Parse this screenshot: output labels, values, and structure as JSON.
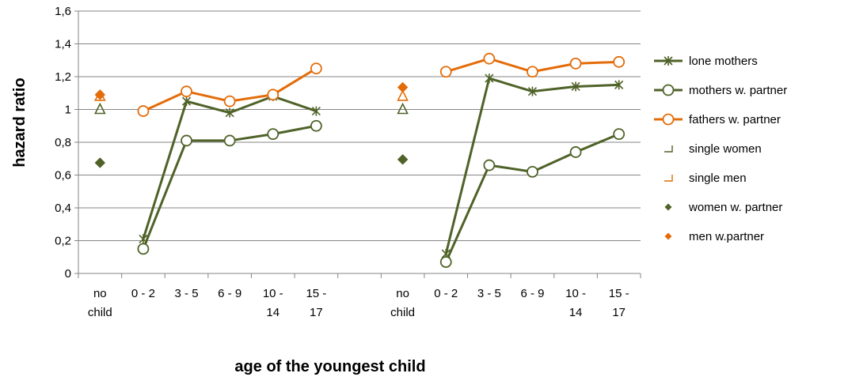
{
  "chart_data": {
    "type": "line",
    "xlabel": "age of the youngest child",
    "ylabel": "hazard ratio",
    "ylim": [
      0,
      1.6
    ],
    "yticks": [
      "0",
      "0,2",
      "0,4",
      "0,6",
      "0,8",
      "1",
      "1,2",
      "1,4",
      "1,6"
    ],
    "grid": "horizontal",
    "legend_position": "right",
    "categories": [
      [
        "no",
        "child"
      ],
      [
        "0 - 2"
      ],
      [
        "3 - 5"
      ],
      [
        "6 - 9"
      ],
      [
        "10 -",
        "14"
      ],
      [
        "15 -",
        "17"
      ],
      [
        ""
      ],
      [
        "no",
        "child"
      ],
      [
        "0 - 2"
      ],
      [
        "3 - 5"
      ],
      [
        "6 - 9"
      ],
      [
        "10 -",
        "14"
      ],
      [
        "15 -",
        "17"
      ]
    ],
    "series": [
      {
        "name": "lone mothers",
        "kind": "line",
        "marker": "star",
        "color": "#4f6228",
        "values": [
          null,
          0.21,
          1.05,
          0.98,
          1.08,
          0.99,
          null,
          null,
          0.12,
          1.19,
          1.11,
          1.14,
          1.15
        ]
      },
      {
        "name": "mothers w. partner",
        "kind": "line",
        "marker": "circle",
        "color": "#4f6228",
        "values": [
          null,
          0.15,
          0.81,
          0.81,
          0.85,
          0.9,
          null,
          null,
          0.07,
          0.66,
          0.62,
          0.74,
          0.85
        ]
      },
      {
        "name": "fathers w. partner",
        "kind": "line",
        "marker": "circle",
        "color": "#e36c09",
        "values": [
          null,
          0.99,
          1.11,
          1.05,
          1.09,
          1.25,
          null,
          null,
          1.23,
          1.31,
          1.23,
          1.28,
          1.29
        ]
      },
      {
        "name": "single women",
        "kind": "point",
        "marker": "triangle",
        "color": "#4f6228",
        "values": [
          1.0,
          null,
          null,
          null,
          null,
          null,
          null,
          1.0,
          null,
          null,
          null,
          null,
          null
        ]
      },
      {
        "name": "single men",
        "kind": "point",
        "marker": "triangle",
        "color": "#e36c09",
        "values": [
          1.08,
          null,
          null,
          null,
          null,
          null,
          null,
          1.08,
          null,
          null,
          null,
          null,
          null
        ]
      },
      {
        "name": "women w. partner",
        "kind": "point",
        "marker": "diamond",
        "color": "#4f6228",
        "values": [
          0.675,
          null,
          null,
          null,
          null,
          null,
          null,
          0.695,
          null,
          null,
          null,
          null,
          null
        ]
      },
      {
        "name": "men w.partner",
        "kind": "point",
        "marker": "diamond",
        "color": "#e36c09",
        "values": [
          1.09,
          null,
          null,
          null,
          null,
          null,
          null,
          1.135,
          null,
          null,
          null,
          null,
          null
        ]
      }
    ]
  }
}
